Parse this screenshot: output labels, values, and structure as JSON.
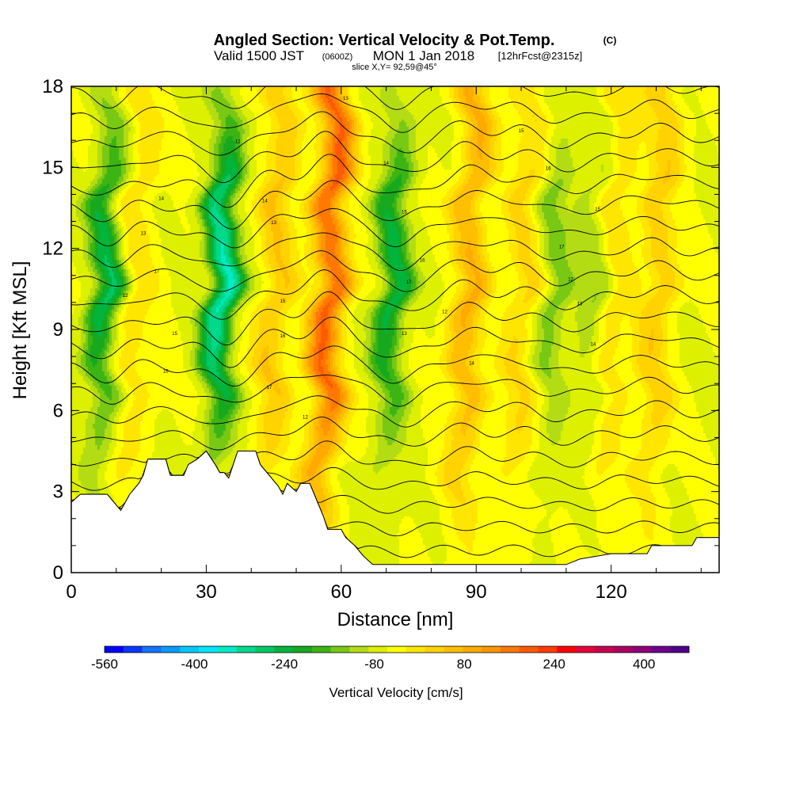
{
  "chart_data": {
    "type": "heatmap",
    "title": "Angled Section: Vertical Velocity & Pot.Temp.",
    "title_unit": "(C)",
    "subtitle": {
      "valid": "Valid 1500 JST",
      "utc": "(0600Z)",
      "date": "MON 1 Jan 2018",
      "forecast": "[12hrFcst@2315z]",
      "slice": "slice X,Y= 92,59@45°"
    },
    "xlabel": "Distance [nm]",
    "ylabel": "Height [Kft MSL]",
    "xlim": [
      0,
      144
    ],
    "ylim": [
      0,
      18
    ],
    "x_ticks": [
      0,
      30,
      60,
      90,
      120
    ],
    "y_ticks": [
      0,
      3,
      6,
      9,
      12,
      15,
      18
    ],
    "colorbar": {
      "label": "Vertical Velocity [cm/s]",
      "tick_labels": [
        "-560",
        "-400",
        "-240",
        "-80",
        "80",
        "240",
        "400"
      ],
      "tick_values": [
        -560,
        -400,
        -240,
        -80,
        80,
        240,
        400
      ],
      "range": [
        -560,
        480
      ],
      "step": 40,
      "colors": [
        "#0000ff",
        "#0a37ff",
        "#1473ff",
        "#0a9bff",
        "#00c8ff",
        "#00e6ff",
        "#00ecc8",
        "#00d98c",
        "#00c864",
        "#00b43c",
        "#18a81e",
        "#3cb414",
        "#78c814",
        "#b4dc14",
        "#dcf000",
        "#ffff00",
        "#ffe600",
        "#ffd200",
        "#ffbe00",
        "#ffaa00",
        "#ff9600",
        "#ff7800",
        "#ff5a00",
        "#ff3c00",
        "#ff0000",
        "#e6003c",
        "#c80050",
        "#aa0064",
        "#8c0078",
        "#6e008c",
        "#50008c"
      ]
    },
    "updrafts": [
      {
        "x": 57,
        "peak": 280
      },
      {
        "x": 88,
        "peak": 160
      },
      {
        "x": 45,
        "peak": 120
      },
      {
        "x": 130,
        "peak": 110
      },
      {
        "x": 14,
        "peak": 70
      },
      {
        "x": 100,
        "peak": 90
      },
      {
        "x": 120,
        "peak": 80
      }
    ],
    "downdrafts": [
      {
        "x": 7,
        "peak": -240
      },
      {
        "x": 33,
        "peak": -340
      },
      {
        "x": 71,
        "peak": -230
      },
      {
        "x": 107,
        "peak": -110
      },
      {
        "x": 116,
        "peak": -90
      }
    ],
    "terrain": [
      [
        0,
        2.6
      ],
      [
        2,
        2.9
      ],
      [
        8,
        2.9
      ],
      [
        10,
        2.5
      ],
      [
        11,
        2.3
      ],
      [
        12,
        2.6
      ],
      [
        13,
        2.9
      ],
      [
        14,
        3.1
      ],
      [
        15,
        3.3
      ],
      [
        16,
        3.6
      ],
      [
        17,
        4.2
      ],
      [
        21,
        4.2
      ],
      [
        22,
        3.6
      ],
      [
        25,
        3.6
      ],
      [
        26,
        4.0
      ],
      [
        28,
        4.2
      ],
      [
        30,
        4.5
      ],
      [
        32,
        4.0
      ],
      [
        33,
        3.7
      ],
      [
        34,
        3.7
      ],
      [
        35,
        3.5
      ],
      [
        36,
        4.0
      ],
      [
        37,
        4.5
      ],
      [
        41,
        4.5
      ],
      [
        42,
        4.0
      ],
      [
        44,
        3.6
      ],
      [
        46,
        3.2
      ],
      [
        47,
        2.9
      ],
      [
        48,
        3.3
      ],
      [
        50,
        3.0
      ],
      [
        51,
        3.3
      ],
      [
        53,
        3.3
      ],
      [
        55,
        2.5
      ],
      [
        56,
        2.1
      ],
      [
        57,
        1.6
      ],
      [
        60,
        1.6
      ],
      [
        61,
        1.3
      ],
      [
        63,
        1.0
      ],
      [
        65,
        0.6
      ],
      [
        67,
        0.3
      ],
      [
        95,
        0.3
      ],
      [
        110,
        0.3
      ],
      [
        113,
        0.5
      ],
      [
        120,
        0.7
      ],
      [
        128,
        0.7
      ],
      [
        129,
        1.0
      ],
      [
        138,
        1.0
      ],
      [
        139,
        1.3
      ],
      [
        144,
        1.3
      ]
    ],
    "isentrope_labels": [
      "12",
      "13",
      "14",
      "15",
      "16",
      "17"
    ]
  }
}
